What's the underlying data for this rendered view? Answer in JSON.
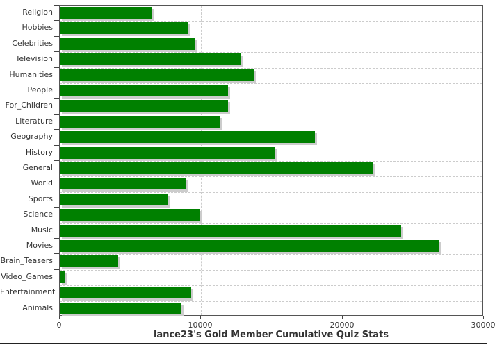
{
  "chart_data": {
    "type": "bar",
    "orientation": "horizontal",
    "title": "lance23's Gold Member Cumulative Quiz Stats",
    "categories": [
      "Religion",
      "Hobbies",
      "Celebrities",
      "Television",
      "Humanities",
      "People",
      "For_Children",
      "Literature",
      "Geography",
      "History",
      "General",
      "World",
      "Sports",
      "Science",
      "Music",
      "Movies",
      "Brain_Teasers",
      "Video_Games",
      "Entertainment",
      "Animals"
    ],
    "values": [
      6550,
      9050,
      9600,
      12800,
      13700,
      11900,
      11900,
      11300,
      18050,
      15200,
      22200,
      8900,
      7600,
      9950,
      24150,
      26800,
      4150,
      400,
      9300,
      8600
    ],
    "xlim": [
      0,
      30000
    ],
    "x_ticks": [
      {
        "value": 0,
        "label": "0"
      },
      {
        "value": 10000,
        "label": "10000"
      },
      {
        "value": 20000,
        "label": "20000"
      },
      {
        "value": 30000,
        "label": "30000"
      }
    ],
    "grid": "dashed",
    "legend": "none",
    "colors": {
      "bar": "#008000",
      "bar_shadow": "#cccccc",
      "gridline": "#cccccc",
      "plot_border": "#555555",
      "axis": "#444444",
      "text": "#333333"
    }
  }
}
